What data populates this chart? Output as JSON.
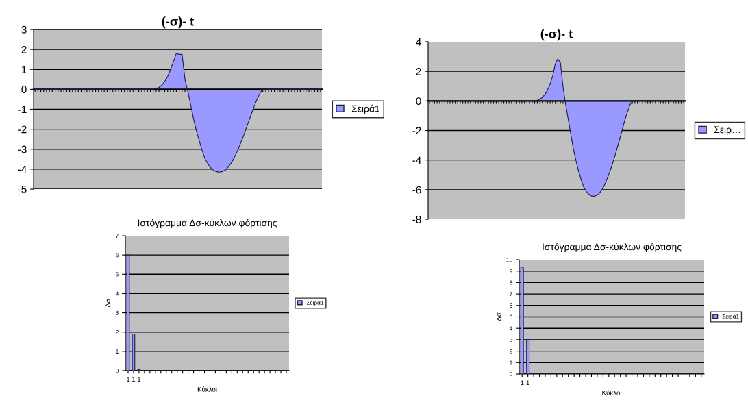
{
  "chart_data": [
    {
      "type": "area",
      "title": "(-σ)- t",
      "categories": [
        null,
        null,
        null,
        null,
        null,
        null,
        null,
        null,
        null,
        null,
        null,
        null,
        null,
        null,
        null,
        null,
        null,
        null,
        null,
        null,
        null,
        null,
        null,
        null,
        null,
        null,
        null,
        null,
        null,
        null,
        null,
        null,
        null,
        null,
        null,
        null,
        null,
        null,
        null,
        null,
        null,
        null,
        null,
        null,
        null,
        null,
        null,
        null,
        null,
        null,
        null,
        null,
        null,
        null,
        null,
        null,
        null,
        null,
        null,
        null,
        null,
        null,
        null,
        null,
        null,
        null,
        null,
        null,
        null,
        null,
        null,
        null,
        null,
        null,
        null,
        null,
        null,
        null,
        null,
        null,
        null,
        null,
        null,
        null,
        null,
        null,
        null,
        null,
        null,
        null,
        null,
        null,
        null,
        null,
        null,
        null,
        null,
        null,
        null,
        null
      ],
      "series": [
        {
          "name": "Σειρά1",
          "color": "#9999ff",
          "values": [
            0,
            0,
            0,
            0,
            0,
            0,
            0,
            0,
            0,
            0,
            0,
            0,
            0,
            0,
            0,
            0,
            0,
            0,
            0,
            0,
            0,
            0,
            0,
            0,
            0,
            0,
            0,
            0,
            0,
            0,
            0,
            0,
            0,
            0,
            0,
            0,
            0,
            0,
            0,
            0,
            0,
            0.01,
            0.04,
            0.1,
            0.22,
            0.4,
            0.65,
            1.0,
            1.4,
            1.8,
            1.75,
            1.75,
            0.5,
            -0.1,
            -0.8,
            -1.5,
            -2.1,
            -2.6,
            -3.1,
            -3.5,
            -3.75,
            -3.95,
            -4.07,
            -4.13,
            -4.15,
            -4.12,
            -4.05,
            -3.9,
            -3.7,
            -3.45,
            -3.15,
            -2.8,
            -2.45,
            -2.05,
            -1.65,
            -1.25,
            -0.85,
            -0.5,
            -0.2,
            0,
            0,
            0,
            0,
            0,
            0,
            0,
            0,
            0,
            0,
            0,
            0,
            0,
            0,
            0,
            0,
            0,
            0,
            0,
            0,
            0
          ]
        }
      ],
      "ylim": [
        -5,
        3
      ],
      "yticks": [
        -5,
        -4,
        -3,
        -2,
        -1,
        0,
        1,
        2,
        3
      ],
      "grid": "y",
      "legend": "right"
    },
    {
      "type": "area",
      "title": "(-σ)- t",
      "categories": [
        null,
        null,
        null,
        null,
        null,
        null,
        null,
        null,
        null,
        null,
        null,
        null,
        null,
        null,
        null,
        null,
        null,
        null,
        null,
        null,
        null,
        null,
        null,
        null,
        null,
        null,
        null,
        null,
        null,
        null,
        null,
        null,
        null,
        null,
        null,
        null,
        null,
        null,
        null,
        null,
        null,
        null,
        null,
        null,
        null,
        null,
        null,
        null,
        null,
        null,
        null,
        null,
        null,
        null,
        null,
        null,
        null,
        null,
        null,
        null,
        null,
        null,
        null,
        null,
        null,
        null,
        null,
        null,
        null,
        null,
        null,
        null,
        null,
        null,
        null,
        null,
        null,
        null,
        null,
        null,
        null,
        null,
        null,
        null,
        null,
        null,
        null,
        null,
        null,
        null,
        null,
        null,
        null,
        null,
        null,
        null,
        null,
        null,
        null,
        null
      ],
      "series": [
        {
          "name": "Σειρ…",
          "color": "#9999ff",
          "values": [
            0,
            0,
            0,
            0,
            0,
            0,
            0,
            0,
            0,
            0,
            0,
            0,
            0,
            0,
            0,
            0,
            0,
            0,
            0,
            0,
            0,
            0,
            0,
            0,
            0,
            0,
            0,
            0,
            0,
            0,
            0,
            0,
            0,
            0,
            0,
            0,
            0,
            0,
            0,
            0,
            0,
            0.02,
            0.05,
            0.12,
            0.25,
            0.45,
            0.75,
            1.15,
            1.7,
            2.5,
            2.85,
            2.6,
            1.0,
            -0.2,
            -1.2,
            -2.2,
            -3.2,
            -4.0,
            -4.7,
            -5.3,
            -5.8,
            -6.1,
            -6.3,
            -6.42,
            -6.45,
            -6.4,
            -6.28,
            -6.05,
            -5.75,
            -5.35,
            -4.9,
            -4.4,
            -3.85,
            -3.25,
            -2.65,
            -2.0,
            -1.35,
            -0.8,
            -0.3,
            0,
            0,
            0,
            0,
            0,
            0,
            0,
            0,
            0,
            0,
            0,
            0,
            0,
            0,
            0,
            0,
            0,
            0,
            0,
            0,
            0
          ]
        }
      ],
      "ylim": [
        -8,
        4
      ],
      "yticks": [
        -8,
        -6,
        -4,
        -2,
        0,
        2,
        4
      ],
      "grid": "y",
      "legend": "right"
    },
    {
      "type": "bar",
      "title": "Ιστόγραμμα Δσ-κύκλων φόρτισης",
      "xlabel": "Κύκλοι",
      "ylabel": "Δσ",
      "categories": [
        "1",
        "1",
        "1",
        null,
        null,
        null,
        null,
        null,
        null,
        null,
        null,
        null,
        null,
        null,
        null,
        null,
        null,
        null,
        null,
        null,
        null,
        null,
        null,
        null,
        null,
        null,
        null,
        null,
        null,
        null
      ],
      "series": [
        {
          "name": "Σειρά1",
          "color": "#9999ff",
          "values": [
            6,
            1.9,
            0.05,
            null,
            null,
            null,
            null,
            null,
            null,
            null,
            null,
            null,
            null,
            null,
            null,
            null,
            null,
            null,
            null,
            null,
            null,
            null,
            null,
            null,
            null,
            null,
            null,
            null,
            null,
            null
          ]
        }
      ],
      "ylim": [
        0,
        7
      ],
      "yticks": [
        0,
        1,
        2,
        3,
        4,
        5,
        6,
        7
      ],
      "grid": "y",
      "legend": "right"
    },
    {
      "type": "bar",
      "title": "Ιστόγραμμα Δσ-κύκλων φόρτισης",
      "xlabel": "Κύκλοι",
      "ylabel": "Δσ",
      "categories": [
        "1",
        "1",
        null,
        null,
        null,
        null,
        null,
        null,
        null,
        null,
        null,
        null,
        null,
        null,
        null,
        null,
        null,
        null,
        null,
        null,
        null,
        null,
        null,
        null,
        null,
        null,
        null,
        null,
        null,
        null,
        null,
        null
      ],
      "series": [
        {
          "name": "Σειρά1",
          "color": "#9999ff",
          "values": [
            9.35,
            3.0,
            null,
            null,
            null,
            null,
            null,
            null,
            null,
            null,
            null,
            null,
            null,
            null,
            null,
            null,
            null,
            null,
            null,
            null,
            null,
            null,
            null,
            null,
            null,
            null,
            null,
            null,
            null,
            null,
            null,
            null
          ]
        }
      ],
      "ylim": [
        0,
        10
      ],
      "yticks": [
        0,
        1,
        2,
        3,
        4,
        5,
        6,
        7,
        8,
        9,
        10
      ],
      "grid": "y",
      "legend": "right"
    }
  ]
}
